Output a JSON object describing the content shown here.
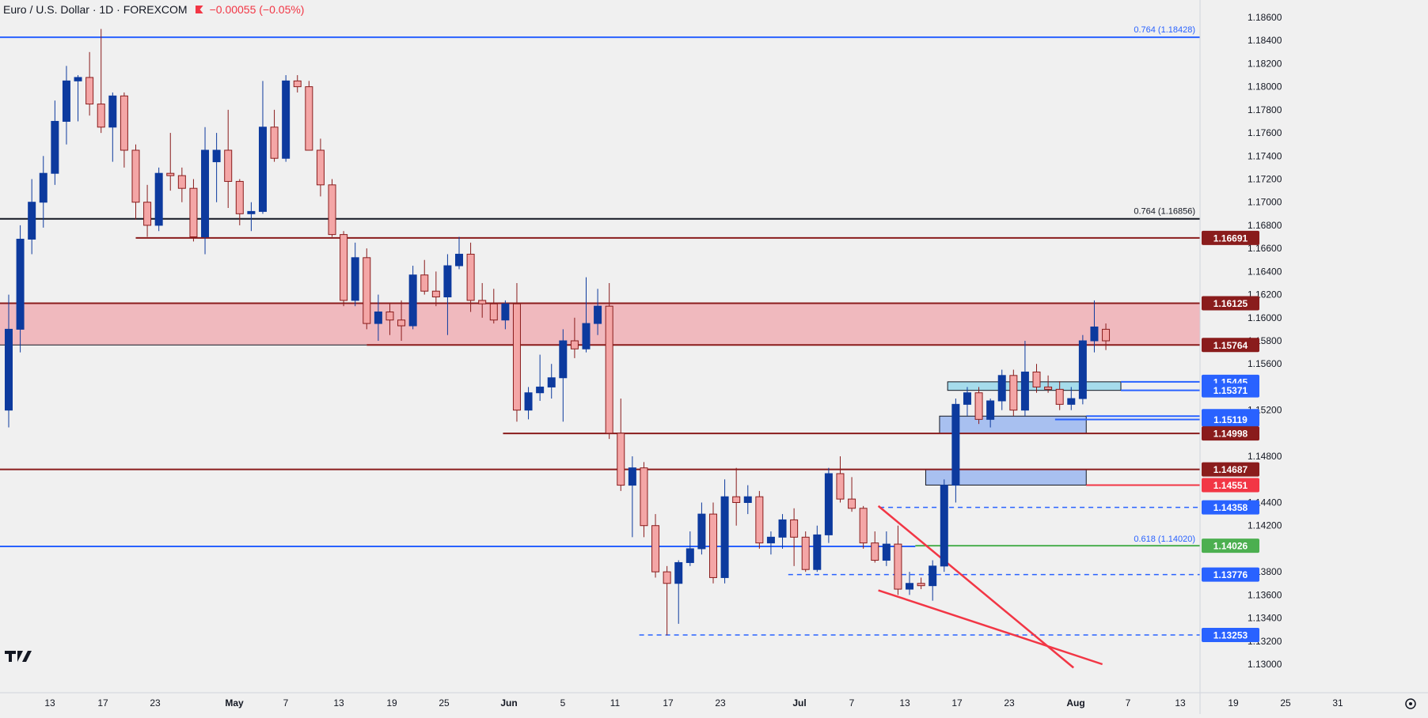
{
  "header": {
    "title": "Euro / U.S. Dollar · 1D · FOREXCOM",
    "change": "−0.00055 (−0.05%)"
  },
  "colors": {
    "bull": "#0d3a9e",
    "bear": "#f4a6a6",
    "bear_edge": "#8a1c1c",
    "background": "#f0f0f0",
    "zone_red": "#f0b3b8",
    "zone_blue": "#a8c0f0",
    "zone_cyan": "#a6dcec",
    "maroon": "#8a1c1c",
    "fib_blue": "#2962ff",
    "green": "#4caf50",
    "trend_red": "#f23645"
  },
  "chart_data": {
    "type": "candlestick",
    "title": "Euro / U.S. Dollar · 1D · FOREXCOM",
    "ylim": [
      1.1285,
      1.1875
    ],
    "grid": false,
    "x_ticks": [
      "13",
      "17",
      "23",
      "May",
      "7",
      "13",
      "19",
      "25",
      "Jun",
      "5",
      "11",
      "17",
      "23",
      "Jul",
      "7",
      "13",
      "17",
      "23",
      "Aug",
      "7",
      "13",
      "19",
      "25",
      "31"
    ],
    "y_ticks": [
      "1.18600",
      "1.18400",
      "1.18200",
      "1.18000",
      "1.17800",
      "1.17600",
      "1.17400",
      "1.17200",
      "1.17000",
      "1.16800",
      "1.16600",
      "1.16400",
      "1.16200",
      "1.16000",
      "1.15800",
      "1.15600",
      "1.15200",
      "1.14800",
      "1.14400",
      "1.14200",
      "1.13800",
      "1.13600",
      "1.13400",
      "1.13200",
      "1.13000"
    ],
    "candles": [
      {
        "o": 1.152,
        "h": 1.162,
        "l": 1.1505,
        "c": 1.159
      },
      {
        "o": 1.159,
        "h": 1.168,
        "l": 1.157,
        "c": 1.1668
      },
      {
        "o": 1.1668,
        "h": 1.172,
        "l": 1.1655,
        "c": 1.17
      },
      {
        "o": 1.17,
        "h": 1.174,
        "l": 1.1678,
        "c": 1.1725
      },
      {
        "o": 1.1725,
        "h": 1.1788,
        "l": 1.1715,
        "c": 1.177
      },
      {
        "o": 1.177,
        "h": 1.1818,
        "l": 1.175,
        "c": 1.1805
      },
      {
        "o": 1.1805,
        "h": 1.181,
        "l": 1.177,
        "c": 1.1808
      },
      {
        "o": 1.1808,
        "h": 1.183,
        "l": 1.1775,
        "c": 1.1785
      },
      {
        "o": 1.1785,
        "h": 1.185,
        "l": 1.176,
        "c": 1.1765
      },
      {
        "o": 1.1765,
        "h": 1.1795,
        "l": 1.1735,
        "c": 1.1792
      },
      {
        "o": 1.1792,
        "h": 1.1795,
        "l": 1.173,
        "c": 1.1745
      },
      {
        "o": 1.1745,
        "h": 1.175,
        "l": 1.1685,
        "c": 1.17
      },
      {
        "o": 1.17,
        "h": 1.1715,
        "l": 1.167,
        "c": 1.168
      },
      {
        "o": 1.168,
        "h": 1.173,
        "l": 1.1675,
        "c": 1.1725
      },
      {
        "o": 1.1725,
        "h": 1.176,
        "l": 1.171,
        "c": 1.1723
      },
      {
        "o": 1.1723,
        "h": 1.173,
        "l": 1.17,
        "c": 1.1712
      },
      {
        "o": 1.1712,
        "h": 1.172,
        "l": 1.1666,
        "c": 1.167
      },
      {
        "o": 1.167,
        "h": 1.1765,
        "l": 1.1655,
        "c": 1.1745
      },
      {
        "o": 1.1735,
        "h": 1.176,
        "l": 1.17,
        "c": 1.1745
      },
      {
        "o": 1.1745,
        "h": 1.178,
        "l": 1.1695,
        "c": 1.1718
      },
      {
        "o": 1.1718,
        "h": 1.172,
        "l": 1.168,
        "c": 1.169
      },
      {
        "o": 1.169,
        "h": 1.17,
        "l": 1.1675,
        "c": 1.1692
      },
      {
        "o": 1.1692,
        "h": 1.1805,
        "l": 1.169,
        "c": 1.1765
      },
      {
        "o": 1.1765,
        "h": 1.178,
        "l": 1.1735,
        "c": 1.1738
      },
      {
        "o": 1.1738,
        "h": 1.181,
        "l": 1.1735,
        "c": 1.1805
      },
      {
        "o": 1.1805,
        "h": 1.181,
        "l": 1.1795,
        "c": 1.18
      },
      {
        "o": 1.18,
        "h": 1.1805,
        "l": 1.1745,
        "c": 1.1745
      },
      {
        "o": 1.1745,
        "h": 1.1755,
        "l": 1.1705,
        "c": 1.1715
      },
      {
        "o": 1.1715,
        "h": 1.172,
        "l": 1.167,
        "c": 1.1672
      },
      {
        "o": 1.1672,
        "h": 1.1675,
        "l": 1.161,
        "c": 1.1615
      },
      {
        "o": 1.1615,
        "h": 1.1665,
        "l": 1.161,
        "c": 1.1652
      },
      {
        "o": 1.1652,
        "h": 1.166,
        "l": 1.159,
        "c": 1.1595
      },
      {
        "o": 1.1595,
        "h": 1.162,
        "l": 1.158,
        "c": 1.1605
      },
      {
        "o": 1.1605,
        "h": 1.1612,
        "l": 1.1585,
        "c": 1.1598
      },
      {
        "o": 1.1598,
        "h": 1.1615,
        "l": 1.158,
        "c": 1.1593
      },
      {
        "o": 1.1593,
        "h": 1.1645,
        "l": 1.159,
        "c": 1.1637
      },
      {
        "o": 1.1637,
        "h": 1.165,
        "l": 1.162,
        "c": 1.1623
      },
      {
        "o": 1.1623,
        "h": 1.164,
        "l": 1.161,
        "c": 1.1618
      },
      {
        "o": 1.1618,
        "h": 1.1655,
        "l": 1.1585,
        "c": 1.1645
      },
      {
        "o": 1.1645,
        "h": 1.167,
        "l": 1.1642,
        "c": 1.1655
      },
      {
        "o": 1.1655,
        "h": 1.1665,
        "l": 1.1605,
        "c": 1.1615
      },
      {
        "o": 1.1615,
        "h": 1.163,
        "l": 1.16,
        "c": 1.1612
      },
      {
        "o": 1.1612,
        "h": 1.1625,
        "l": 1.1595,
        "c": 1.1598
      },
      {
        "o": 1.1598,
        "h": 1.1615,
        "l": 1.159,
        "c": 1.1612
      },
      {
        "o": 1.1612,
        "h": 1.163,
        "l": 1.151,
        "c": 1.152
      },
      {
        "o": 1.152,
        "h": 1.154,
        "l": 1.1512,
        "c": 1.1535
      },
      {
        "o": 1.1535,
        "h": 1.1568,
        "l": 1.1528,
        "c": 1.154
      },
      {
        "o": 1.154,
        "h": 1.156,
        "l": 1.153,
        "c": 1.1548
      },
      {
        "o": 1.1548,
        "h": 1.159,
        "l": 1.151,
        "c": 1.158
      },
      {
        "o": 1.158,
        "h": 1.16,
        "l": 1.1565,
        "c": 1.1573
      },
      {
        "o": 1.1573,
        "h": 1.1635,
        "l": 1.157,
        "c": 1.1595
      },
      {
        "o": 1.1595,
        "h": 1.1625,
        "l": 1.1585,
        "c": 1.161
      },
      {
        "o": 1.161,
        "h": 1.163,
        "l": 1.1495,
        "c": 1.15
      },
      {
        "o": 1.15,
        "h": 1.153,
        "l": 1.145,
        "c": 1.1455
      },
      {
        "o": 1.1455,
        "h": 1.148,
        "l": 1.141,
        "c": 1.147
      },
      {
        "o": 1.147,
        "h": 1.1475,
        "l": 1.141,
        "c": 1.142
      },
      {
        "o": 1.142,
        "h": 1.143,
        "l": 1.1375,
        "c": 1.138
      },
      {
        "o": 1.138,
        "h": 1.1385,
        "l": 1.1325,
        "c": 1.137
      },
      {
        "o": 1.137,
        "h": 1.139,
        "l": 1.1335,
        "c": 1.1388
      },
      {
        "o": 1.1388,
        "h": 1.1415,
        "l": 1.1385,
        "c": 1.14
      },
      {
        "o": 1.14,
        "h": 1.144,
        "l": 1.1395,
        "c": 1.143
      },
      {
        "o": 1.143,
        "h": 1.144,
        "l": 1.137,
        "c": 1.1375
      },
      {
        "o": 1.1375,
        "h": 1.146,
        "l": 1.137,
        "c": 1.1445
      },
      {
        "o": 1.1445,
        "h": 1.147,
        "l": 1.142,
        "c": 1.144
      },
      {
        "o": 1.144,
        "h": 1.1455,
        "l": 1.143,
        "c": 1.1445
      },
      {
        "o": 1.1445,
        "h": 1.145,
        "l": 1.14,
        "c": 1.1405
      },
      {
        "o": 1.1405,
        "h": 1.1415,
        "l": 1.1395,
        "c": 1.141
      },
      {
        "o": 1.141,
        "h": 1.143,
        "l": 1.14,
        "c": 1.1425
      },
      {
        "o": 1.1425,
        "h": 1.1435,
        "l": 1.1385,
        "c": 1.141
      },
      {
        "o": 1.141,
        "h": 1.1415,
        "l": 1.138,
        "c": 1.1382
      },
      {
        "o": 1.1382,
        "h": 1.142,
        "l": 1.138,
        "c": 1.1412
      },
      {
        "o": 1.1412,
        "h": 1.147,
        "l": 1.1405,
        "c": 1.1465
      },
      {
        "o": 1.1465,
        "h": 1.148,
        "l": 1.144,
        "c": 1.1443
      },
      {
        "o": 1.1443,
        "h": 1.1462,
        "l": 1.1432,
        "c": 1.1435
      },
      {
        "o": 1.1435,
        "h": 1.1437,
        "l": 1.14,
        "c": 1.1405
      },
      {
        "o": 1.1405,
        "h": 1.1415,
        "l": 1.1388,
        "c": 1.139
      },
      {
        "o": 1.139,
        "h": 1.1415,
        "l": 1.1385,
        "c": 1.1404
      },
      {
        "o": 1.1404,
        "h": 1.142,
        "l": 1.136,
        "c": 1.1365
      },
      {
        "o": 1.1365,
        "h": 1.138,
        "l": 1.136,
        "c": 1.137
      },
      {
        "o": 1.137,
        "h": 1.1375,
        "l": 1.1365,
        "c": 1.1368
      },
      {
        "o": 1.1368,
        "h": 1.139,
        "l": 1.1355,
        "c": 1.1385
      },
      {
        "o": 1.1385,
        "h": 1.146,
        "l": 1.138,
        "c": 1.1455
      },
      {
        "o": 1.1455,
        "h": 1.153,
        "l": 1.144,
        "c": 1.1525
      },
      {
        "o": 1.1525,
        "h": 1.154,
        "l": 1.1515,
        "c": 1.1535
      },
      {
        "o": 1.1535,
        "h": 1.154,
        "l": 1.1508,
        "c": 1.1512
      },
      {
        "o": 1.1512,
        "h": 1.153,
        "l": 1.1505,
        "c": 1.1528
      },
      {
        "o": 1.1528,
        "h": 1.1555,
        "l": 1.152,
        "c": 1.155
      },
      {
        "o": 1.155,
        "h": 1.1555,
        "l": 1.1515,
        "c": 1.152
      },
      {
        "o": 1.152,
        "h": 1.158,
        "l": 1.1515,
        "c": 1.1553
      },
      {
        "o": 1.1553,
        "h": 1.156,
        "l": 1.1535,
        "c": 1.154
      },
      {
        "o": 1.154,
        "h": 1.155,
        "l": 1.1535,
        "c": 1.1538
      },
      {
        "o": 1.1538,
        "h": 1.1545,
        "l": 1.152,
        "c": 1.1525
      },
      {
        "o": 1.1525,
        "h": 1.154,
        "l": 1.152,
        "c": 1.153
      },
      {
        "o": 1.153,
        "h": 1.1585,
        "l": 1.1525,
        "c": 1.158
      },
      {
        "o": 1.158,
        "h": 1.1615,
        "l": 1.157,
        "c": 1.1592
      },
      {
        "o": 1.159,
        "h": 1.1595,
        "l": 1.1572,
        "c": 1.158
      }
    ],
    "levels": [
      {
        "value": 1.18428,
        "label": "0.764 (1.18428)",
        "color": "#2962ff",
        "style": "solid",
        "text_color": "#2962ff"
      },
      {
        "value": 1.16856,
        "label": "0.764 (1.16856)",
        "color": "#131722",
        "style": "solid",
        "text_color": "#131722"
      },
      {
        "value": 1.1402,
        "label": "0.618 (1.14020)",
        "color": "#2962ff",
        "style": "solid",
        "text_color": "#2962ff"
      }
    ],
    "price_tags": [
      {
        "value": 1.16691,
        "label": "1.16691",
        "color": "#8a1c1c"
      },
      {
        "value": 1.16125,
        "label": "1.16125",
        "color": "#8a1c1c"
      },
      {
        "value": 1.15764,
        "label": "1.15764",
        "color": "#8a1c1c"
      },
      {
        "value": 1.15445,
        "label": "1.15445",
        "color": "#2962ff"
      },
      {
        "value": 1.15371,
        "label": "1.15371",
        "color": "#2962ff"
      },
      {
        "value": 1.15148,
        "label": "1.15148",
        "color": "#2962ff"
      },
      {
        "value": 1.15119,
        "label": "1.15119",
        "color": "#2962ff"
      },
      {
        "value": 1.14998,
        "label": "1.14998",
        "color": "#8a1c1c"
      },
      {
        "value": 1.14687,
        "label": "1.14687",
        "color": "#8a1c1c"
      },
      {
        "value": 1.14551,
        "label": "1.14551",
        "color": "#f23645"
      },
      {
        "value": 1.14358,
        "label": "1.14358",
        "color": "#2962ff"
      },
      {
        "value": 1.14026,
        "label": "1.14026",
        "color": "#4caf50"
      },
      {
        "value": 1.13776,
        "label": "1.13776",
        "color": "#2962ff"
      },
      {
        "value": 1.13253,
        "label": "1.13253",
        "color": "#2962ff"
      }
    ]
  }
}
